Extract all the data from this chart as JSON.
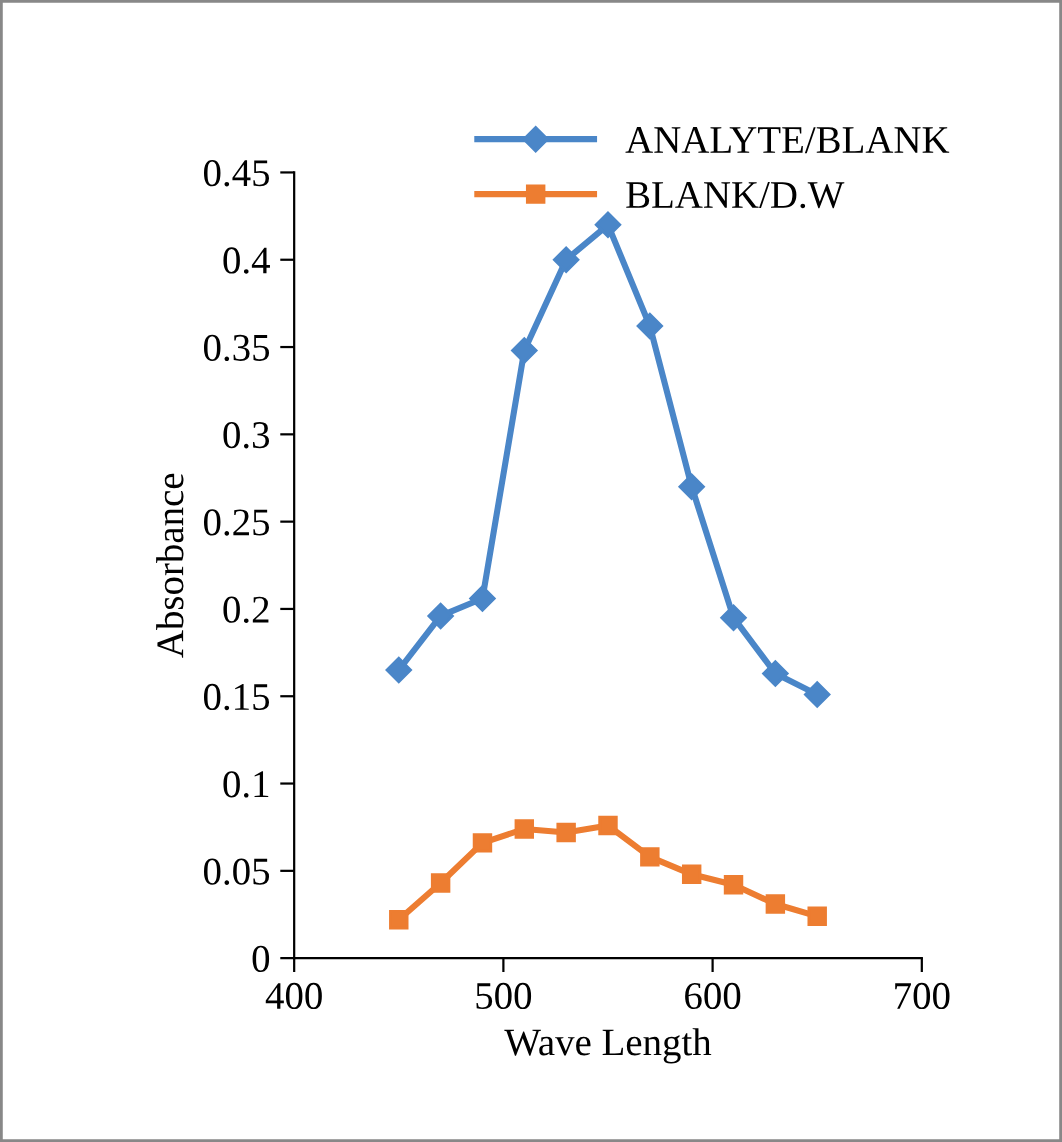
{
  "chart_data": {
    "type": "line",
    "xlabel": "Wave Length",
    "ylabel": "Absorbance",
    "x": [
      450,
      470,
      490,
      510,
      530,
      550,
      570,
      590,
      610,
      630,
      650
    ],
    "series": [
      {
        "name": "ANALYTE/BLANK",
        "color": "#4a86c8",
        "marker": "diamond",
        "values": [
          0.165,
          0.196,
          0.206,
          0.348,
          0.4,
          0.42,
          0.362,
          0.27,
          0.195,
          0.163,
          0.151
        ]
      },
      {
        "name": "BLANK/D.W",
        "color": "#ed7d31",
        "marker": "square",
        "values": [
          0.022,
          0.043,
          0.066,
          0.074,
          0.072,
          0.076,
          0.058,
          0.048,
          0.042,
          0.031,
          0.024
        ]
      }
    ],
    "xlim": [
      400,
      700
    ],
    "xticks": [
      400,
      500,
      600,
      700
    ],
    "ylim": [
      0,
      0.45
    ],
    "yticks": [
      0,
      0.05,
      0.1,
      0.15,
      0.2,
      0.25,
      0.3,
      0.35,
      0.4,
      0.45
    ],
    "grid": false,
    "legend": "top right"
  }
}
